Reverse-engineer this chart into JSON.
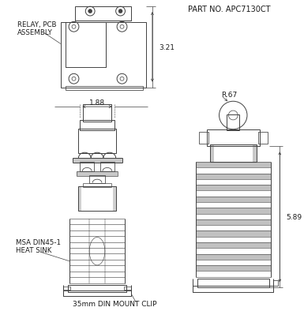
{
  "background_color": "#ffffff",
  "line_color": "#404040",
  "text_color": "#1a1a1a",
  "title": "PART NO. APC7130CT",
  "label_relay": "RELAY, PCB\nASSEMBLY",
  "label_heatsink": "MSA DIN45-1\nHEAT SINK",
  "label_din": "35mm DIN MOUNT CLIP",
  "dim_321": "3.21",
  "dim_188": "1.88",
  "dim_589": "5.89",
  "dim_r67": "R.67",
  "fig_width": 3.85,
  "fig_height": 4.14,
  "dpi": 100
}
